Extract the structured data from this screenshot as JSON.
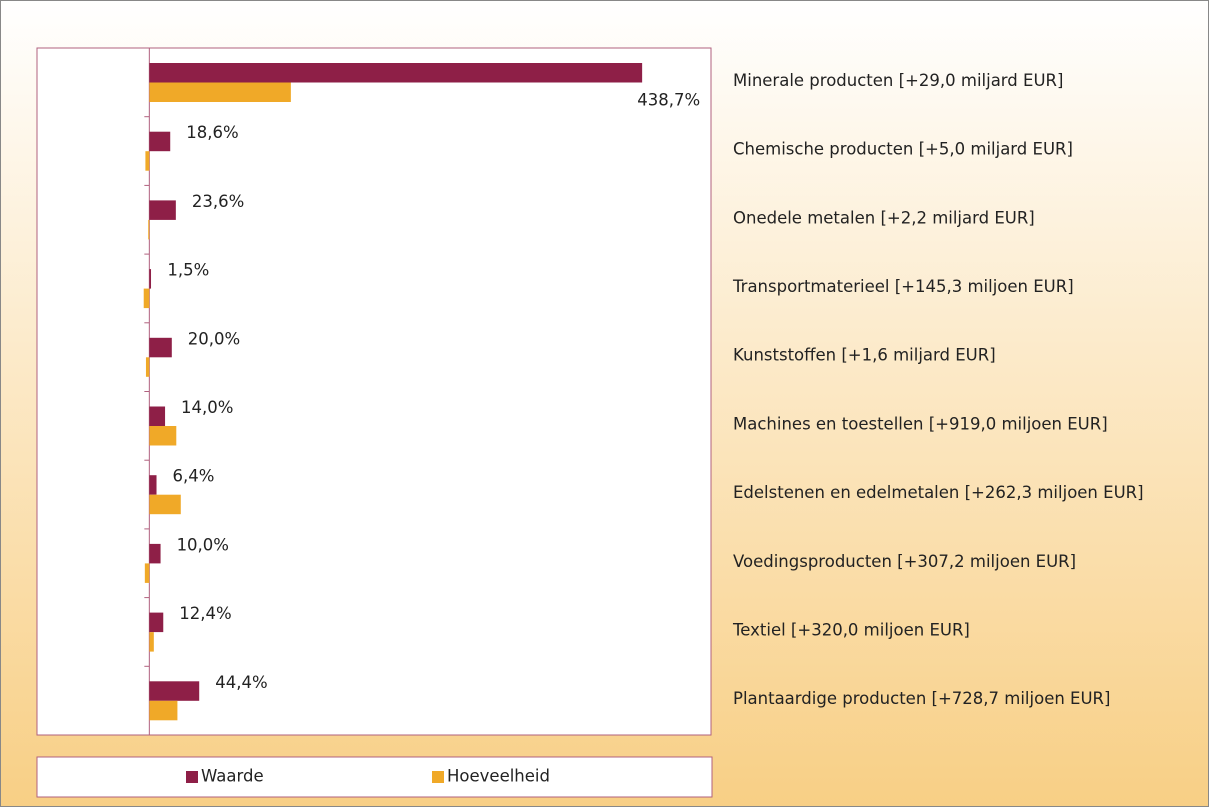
{
  "chart_data": {
    "type": "bar",
    "orientation": "horizontal",
    "categories": [
      "Minerale producten [+29,0 miljard EUR]",
      "Chemische producten [+5,0 miljard EUR]",
      "Onedele metalen [+2,2 miljard EUR]",
      "Transportmaterieel [+145,3 miljoen EUR]",
      "Kunststoffen [+1,6 miljard EUR]",
      "Machines en toestellen [+919,0 miljoen EUR]",
      "Edelstenen en edelmetalen [+262,3 miljoen EUR]",
      "Voedingsproducten [+307,2 miljoen EUR]",
      "Textiel [+320,0 miljoen EUR]",
      "Plantaardige producten [+728,7 miljoen EUR]"
    ],
    "series": [
      {
        "name": "Waarde",
        "color": "#8e1f47",
        "values": [
          438.7,
          18.6,
          23.6,
          1.5,
          20.0,
          14.0,
          6.4,
          10.0,
          12.4,
          44.4
        ],
        "value_labels": [
          "438,7%",
          "18,6%",
          "23,6%",
          "1,5%",
          "20,0%",
          "14,0%",
          "6,4%",
          "10,0%",
          "12,4%",
          "44,4%"
        ]
      },
      {
        "name": "Hoeveelheid",
        "color": "#f0a928",
        "values": [
          126,
          -3.5,
          -1,
          -5,
          -3,
          24,
          28,
          -4,
          4,
          25
        ]
      }
    ],
    "xlim": [
      -100,
      500
    ],
    "legend": "bottom"
  }
}
